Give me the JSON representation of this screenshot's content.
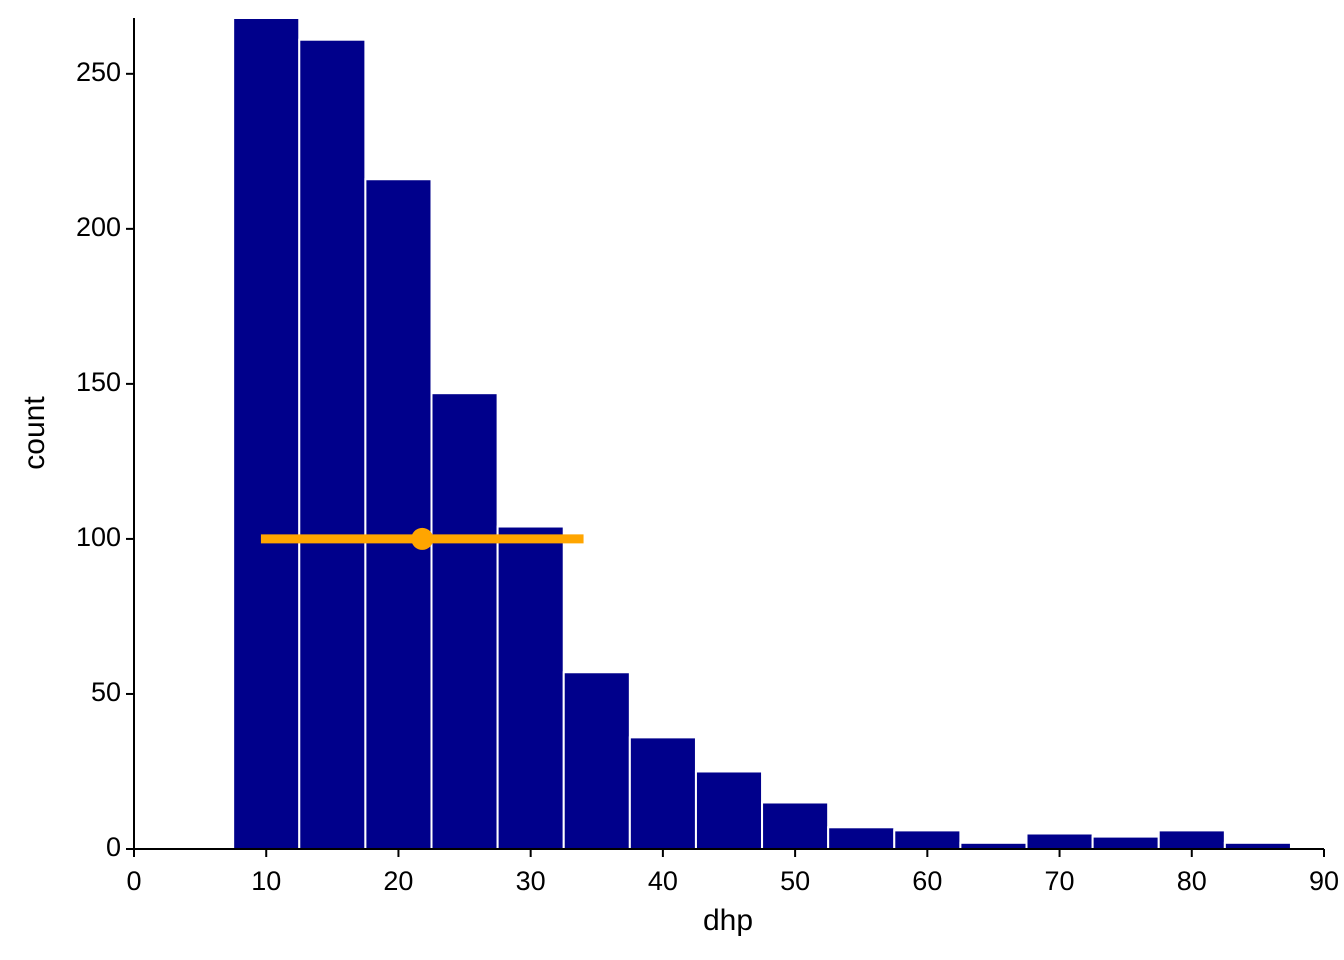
{
  "chart_data": {
    "type": "histogram",
    "bins": [
      7.5,
      12.5,
      17.5,
      22.5,
      27.5,
      32.5,
      37.5,
      42.5,
      47.5,
      52.5,
      57.5,
      62.5,
      67.5,
      72.5,
      77.5,
      82.5,
      87.5
    ],
    "values": [
      268,
      261,
      216,
      147,
      104,
      57,
      36,
      25,
      15,
      7,
      6,
      2,
      5,
      4,
      6,
      2
    ],
    "color": "#00008b",
    "point": {
      "x": 21.8,
      "xerr": 12.2,
      "y": 100,
      "color": "#ffa500"
    },
    "xlabel": "dhp",
    "ylabel": "count",
    "xlim": [
      0,
      90
    ],
    "xticks": [
      0,
      10,
      20,
      30,
      40,
      50,
      60,
      70,
      80,
      90
    ],
    "ylim": [
      0,
      268
    ],
    "yticks": [
      0,
      50,
      100,
      150,
      200,
      250
    ]
  }
}
